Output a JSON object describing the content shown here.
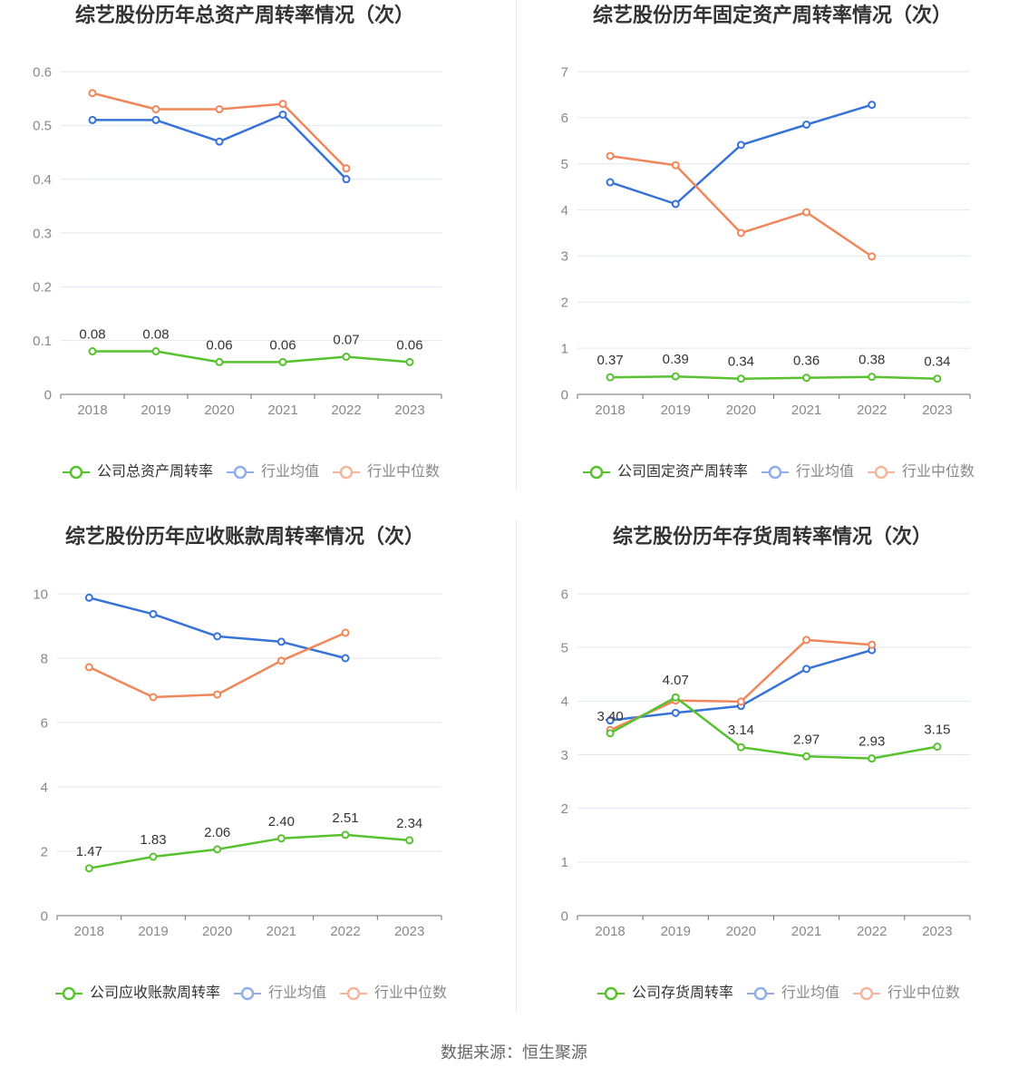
{
  "chart_data": [
    {
      "type": "line",
      "title": "综艺股份历年总资产周转率情况（次）",
      "categories": [
        "2018",
        "2019",
        "2020",
        "2021",
        "2022",
        "2023"
      ],
      "ylim": [
        0,
        0.6
      ],
      "yticks": [
        0,
        0.1,
        0.2,
        0.3,
        0.4,
        0.5,
        0.6
      ],
      "grid": true,
      "legend_position": "bottom",
      "series": [
        {
          "name": "公司总资产周转率",
          "values": [
            0.08,
            0.08,
            0.06,
            0.06,
            0.07,
            0.06
          ],
          "data_labels": true,
          "color": "#57C22E",
          "legend_color": "#57C22E"
        },
        {
          "name": "行业均值",
          "values": [
            0.51,
            0.51,
            0.47,
            0.52,
            0.4,
            null
          ],
          "data_labels": false,
          "color": "#3773D7",
          "legend_color": "#8FAEE9"
        },
        {
          "name": "行业中位数",
          "values": [
            0.56,
            0.53,
            0.53,
            0.54,
            0.42,
            null
          ],
          "data_labels": false,
          "color": "#F0875A",
          "legend_color": "#F5B59C"
        }
      ]
    },
    {
      "type": "line",
      "title": "综艺股份历年固定资产周转率情况（次）",
      "categories": [
        "2018",
        "2019",
        "2020",
        "2021",
        "2022",
        "2023"
      ],
      "ylim": [
        0,
        7
      ],
      "yticks": [
        0,
        1,
        2,
        3,
        4,
        5,
        6,
        7
      ],
      "grid": true,
      "legend_position": "bottom",
      "series": [
        {
          "name": "公司固定资产周转率",
          "values": [
            0.37,
            0.39,
            0.34,
            0.36,
            0.38,
            0.34
          ],
          "data_labels": true,
          "color": "#57C22E",
          "legend_color": "#57C22E"
        },
        {
          "name": "行业均值",
          "values": [
            4.6,
            4.13,
            5.41,
            5.85,
            6.28,
            null
          ],
          "data_labels": false,
          "color": "#3773D7",
          "legend_color": "#8FAEE9"
        },
        {
          "name": "行业中位数",
          "values": [
            5.17,
            4.97,
            3.5,
            3.95,
            2.99,
            null
          ],
          "data_labels": false,
          "color": "#F0875A",
          "legend_color": "#F5B59C"
        }
      ]
    },
    {
      "type": "line",
      "title": "综艺股份历年应收账款周转率情况（次）",
      "categories": [
        "2018",
        "2019",
        "2020",
        "2021",
        "2022",
        "2023"
      ],
      "ylim": [
        0,
        10
      ],
      "yticks": [
        0,
        2,
        4,
        6,
        8,
        10
      ],
      "grid": true,
      "legend_position": "bottom",
      "series": [
        {
          "name": "公司应收账款周转率",
          "values": [
            1.47,
            1.83,
            2.06,
            2.4,
            2.51,
            2.34
          ],
          "data_labels": true,
          "color": "#57C22E",
          "legend_color": "#57C22E"
        },
        {
          "name": "行业均值",
          "values": [
            9.88,
            9.37,
            8.68,
            8.51,
            8.0,
            null
          ],
          "data_labels": false,
          "color": "#3773D7",
          "legend_color": "#8FAEE9"
        },
        {
          "name": "行业中位数",
          "values": [
            7.72,
            6.79,
            6.87,
            7.92,
            8.79,
            null
          ],
          "data_labels": false,
          "color": "#F0875A",
          "legend_color": "#F5B59C"
        }
      ]
    },
    {
      "type": "line",
      "title": "综艺股份历年存货周转率情况（次）",
      "categories": [
        "2018",
        "2019",
        "2020",
        "2021",
        "2022",
        "2023"
      ],
      "ylim": [
        0,
        6
      ],
      "yticks": [
        0,
        1,
        2,
        3,
        4,
        5,
        6
      ],
      "grid": true,
      "legend_position": "bottom",
      "series": [
        {
          "name": "公司存货周转率",
          "values": [
            3.4,
            4.07,
            3.14,
            2.97,
            2.93,
            3.15
          ],
          "data_labels": true,
          "color": "#57C22E",
          "legend_color": "#57C22E"
        },
        {
          "name": "行业均值",
          "values": [
            3.64,
            3.78,
            3.91,
            4.6,
            4.95,
            null
          ],
          "data_labels": false,
          "color": "#3773D7",
          "legend_color": "#8FAEE9"
        },
        {
          "name": "行业中位数",
          "values": [
            3.46,
            4.01,
            3.99,
            5.14,
            5.05,
            null
          ],
          "data_labels": false,
          "color": "#F0875A",
          "legend_color": "#F5B59C"
        }
      ]
    }
  ],
  "footer": {
    "source": "数据来源：恒生聚源"
  }
}
